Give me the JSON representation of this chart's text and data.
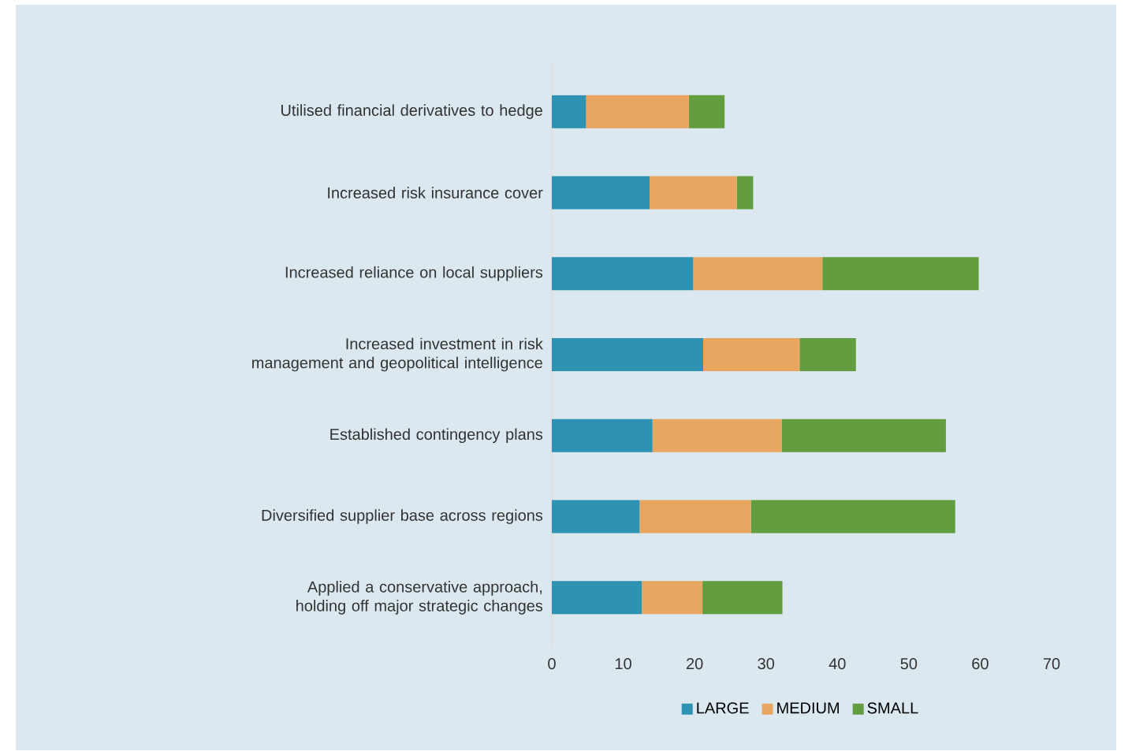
{
  "chart_data": {
    "type": "bar",
    "orientation": "horizontal",
    "stacked": true,
    "categories": [
      "Utilised financial derivatives to hedge",
      "Increased risk insurance cover",
      "Increased reliance on local suppliers",
      "Increased investment in risk management and geopolitical intelligence",
      "Established contingency plans",
      "Diversified supplier base across regions",
      "Applied a conservative approach, holding off major strategic changes"
    ],
    "series": [
      {
        "name": "LARGE",
        "color": "#2e93b2",
        "values": [
          4.8,
          13.7,
          19.8,
          21.2,
          14.1,
          12.3,
          12.6
        ]
      },
      {
        "name": "MEDIUM",
        "color": "#e8a660",
        "values": [
          14.4,
          12.2,
          18.1,
          13.5,
          18.1,
          15.6,
          8.5
        ]
      },
      {
        "name": "SMALL",
        "color": "#629e40",
        "values": [
          5.0,
          2.3,
          21.9,
          7.9,
          23.0,
          28.6,
          11.2
        ]
      }
    ],
    "xlim": [
      0,
      70
    ],
    "xticks": [
      0,
      10,
      20,
      30,
      40,
      50,
      60,
      70
    ],
    "grid": false,
    "legend": "bottom"
  }
}
